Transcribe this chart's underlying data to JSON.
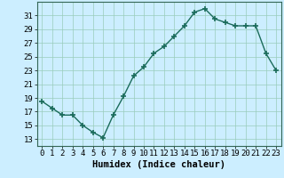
{
  "x": [
    0,
    1,
    2,
    3,
    4,
    5,
    6,
    7,
    8,
    9,
    10,
    11,
    12,
    13,
    14,
    15,
    16,
    17,
    18,
    19,
    20,
    21,
    22,
    23
  ],
  "y": [
    18.5,
    17.5,
    16.5,
    16.5,
    15.0,
    14.0,
    13.2,
    16.5,
    19.2,
    22.2,
    23.5,
    25.5,
    26.5,
    28.0,
    29.5,
    31.5,
    32.0,
    30.5,
    30.0,
    29.5,
    29.5,
    29.5,
    25.5,
    23.0
  ],
  "line_color": "#1a6b5a",
  "marker_color": "#1a6b5a",
  "bg_color": "#cceeff",
  "grid_color": "#99ccbb",
  "xlabel": "Humidex (Indice chaleur)",
  "ylim": [
    12,
    33
  ],
  "xlim": [
    -0.5,
    23.5
  ],
  "yticks": [
    13,
    15,
    17,
    19,
    21,
    23,
    25,
    27,
    29,
    31
  ],
  "xticks": [
    0,
    1,
    2,
    3,
    4,
    5,
    6,
    7,
    8,
    9,
    10,
    11,
    12,
    13,
    14,
    15,
    16,
    17,
    18,
    19,
    20,
    21,
    22,
    23
  ],
  "xlabel_fontsize": 7.5,
  "tick_fontsize": 6.5,
  "linewidth": 1.0,
  "markersize": 4
}
